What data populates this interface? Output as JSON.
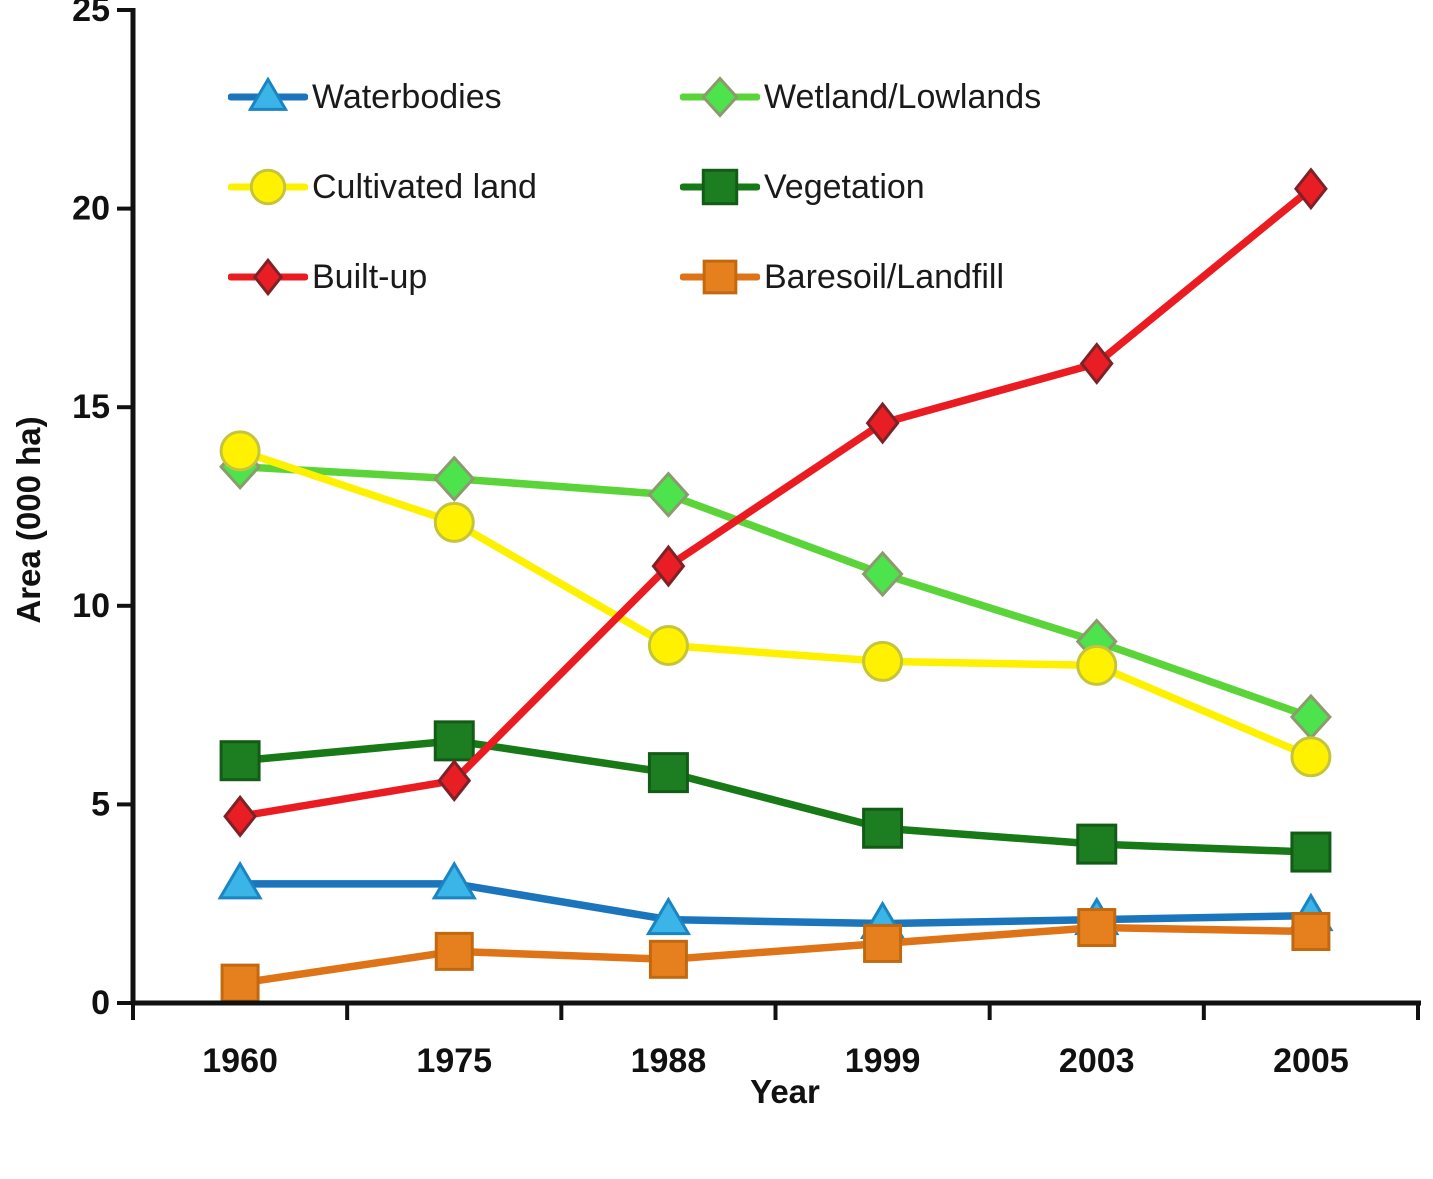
{
  "chart_data": {
    "type": "line",
    "title": "",
    "xlabel": "Year",
    "ylabel": "Area (000 ha)",
    "x_categories": [
      "1960",
      "1975",
      "1988",
      "1999",
      "2003",
      "2005"
    ],
    "ylim": [
      0,
      25
    ],
    "yticks": [
      0,
      5,
      10,
      15,
      20,
      25
    ],
    "grid": false,
    "legend_position": "top-left-inside",
    "legend_columns": 2,
    "series": [
      {
        "name": "Waterbodies",
        "key": "waterbodies",
        "marker": "triangle",
        "line_color": "#1B75BC",
        "marker_fill": "#3BB4E8",
        "marker_stroke": "#1B85C4",
        "values": [
          3.0,
          3.0,
          2.1,
          2.0,
          2.1,
          2.2
        ]
      },
      {
        "name": "Wetland/Lowlands",
        "key": "wetland-lowlands",
        "marker": "diamond",
        "line_color": "#5AD439",
        "marker_fill": "#4CE34C",
        "marker_stroke": "#8C9B6E",
        "values": [
          13.5,
          13.2,
          12.8,
          10.8,
          9.1,
          7.2
        ]
      },
      {
        "name": "Cultivated land",
        "key": "cultivated-land",
        "marker": "circle",
        "line_color": "#FDF100",
        "marker_fill": "#FFF100",
        "marker_stroke": "#C5C53C",
        "values": [
          13.9,
          12.1,
          9.0,
          8.6,
          8.5,
          6.2
        ]
      },
      {
        "name": "Vegetation",
        "key": "vegetation",
        "marker": "square",
        "line_color": "#177A17",
        "marker_fill": "#1C7E21",
        "marker_stroke": "#135C17",
        "values": [
          6.1,
          6.6,
          5.8,
          4.4,
          4.0,
          3.8
        ]
      },
      {
        "name": "Built-up",
        "key": "built-up",
        "marker": "diamond-small",
        "line_color": "#EA1C21",
        "marker_fill": "#E81E24",
        "marker_stroke": "#7E2228",
        "values": [
          4.7,
          5.6,
          11.0,
          14.6,
          16.1,
          20.5
        ]
      },
      {
        "name": "Baresoil/Landfill",
        "key": "baresoil-landfill",
        "marker": "square-small",
        "line_color": "#DE7417",
        "marker_fill": "#E6801F",
        "marker_stroke": "#C2690F",
        "values": [
          0.5,
          1.3,
          1.1,
          1.5,
          1.9,
          1.8
        ]
      }
    ]
  }
}
